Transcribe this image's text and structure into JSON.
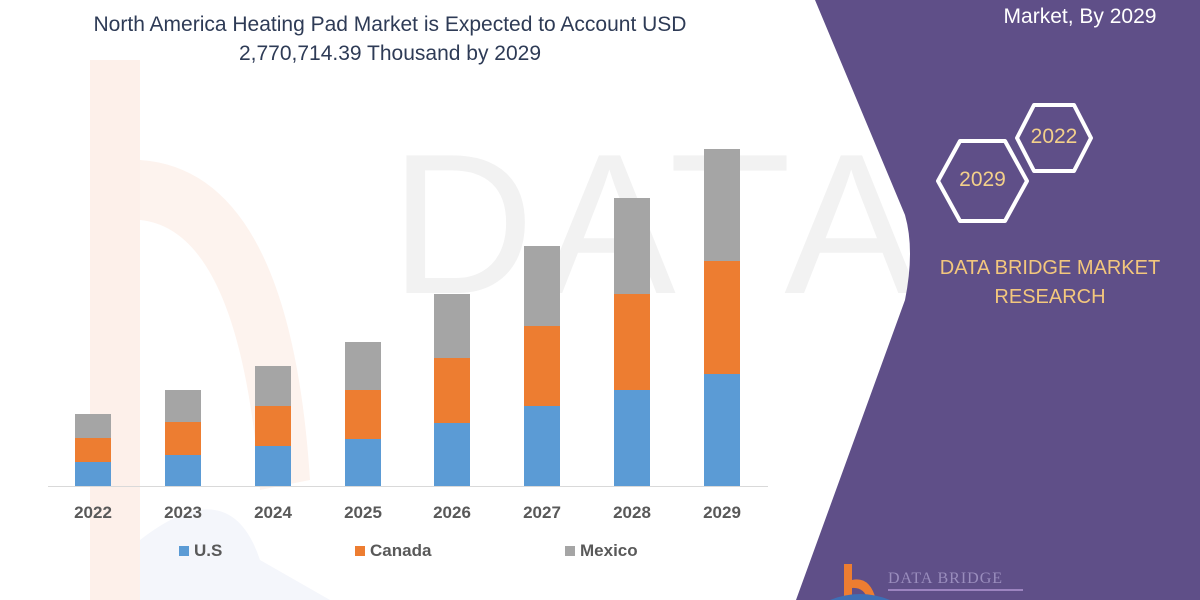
{
  "title": {
    "line1": "North America Heating Pad Market is Expected to Account USD",
    "line2": "2,770,714.39 Thousand by 2029"
  },
  "side_panel": {
    "top_text": "Market, By 2029",
    "hex_left": "2029",
    "hex_right": "2022",
    "brand_line1": "DATA BRIDGE MARKET",
    "brand_line2": "RESEARCH",
    "logo_text": "DATA BRIDGE",
    "background_color": "#5f4f88",
    "accent_color": "#f3c77d"
  },
  "watermark": {
    "text": "DATA BRIDGE"
  },
  "colors": {
    "us": "#5b9bd5",
    "canada": "#ed7d31",
    "mexico": "#a5a5a5"
  },
  "legend": [
    {
      "label": "U.S",
      "color": "#5b9bd5"
    },
    {
      "label": "Canada",
      "color": "#ed7d31"
    },
    {
      "label": "Mexico",
      "color": "#a5a5a5"
    }
  ],
  "chart_data": {
    "type": "bar",
    "stacked": true,
    "title": "North America Heating Pad Market is Expected to Account USD 2,770,714.39 Thousand by 2029",
    "xlabel": "",
    "ylabel": "",
    "y_axis_visible": false,
    "grid": false,
    "legend_position": "bottom",
    "value_units": "relative bar height (no y-axis shown; estimated from pixel heights)",
    "categories": [
      "2022",
      "2023",
      "2024",
      "2025",
      "2026",
      "2027",
      "2028",
      "2029"
    ],
    "series": [
      {
        "name": "U.S",
        "color": "#5b9bd5",
        "values": [
          24,
          31,
          40,
          47,
          63,
          80,
          96,
          112
        ]
      },
      {
        "name": "Canada",
        "color": "#ed7d31",
        "values": [
          24,
          33,
          40,
          49,
          65,
          80,
          96,
          113
        ]
      },
      {
        "name": "Mexico",
        "color": "#a5a5a5",
        "values": [
          24,
          32,
          40,
          48,
          64,
          80,
          96,
          112
        ]
      }
    ],
    "totals": [
      72,
      96,
      120,
      144,
      192,
      240,
      288,
      337
    ]
  }
}
